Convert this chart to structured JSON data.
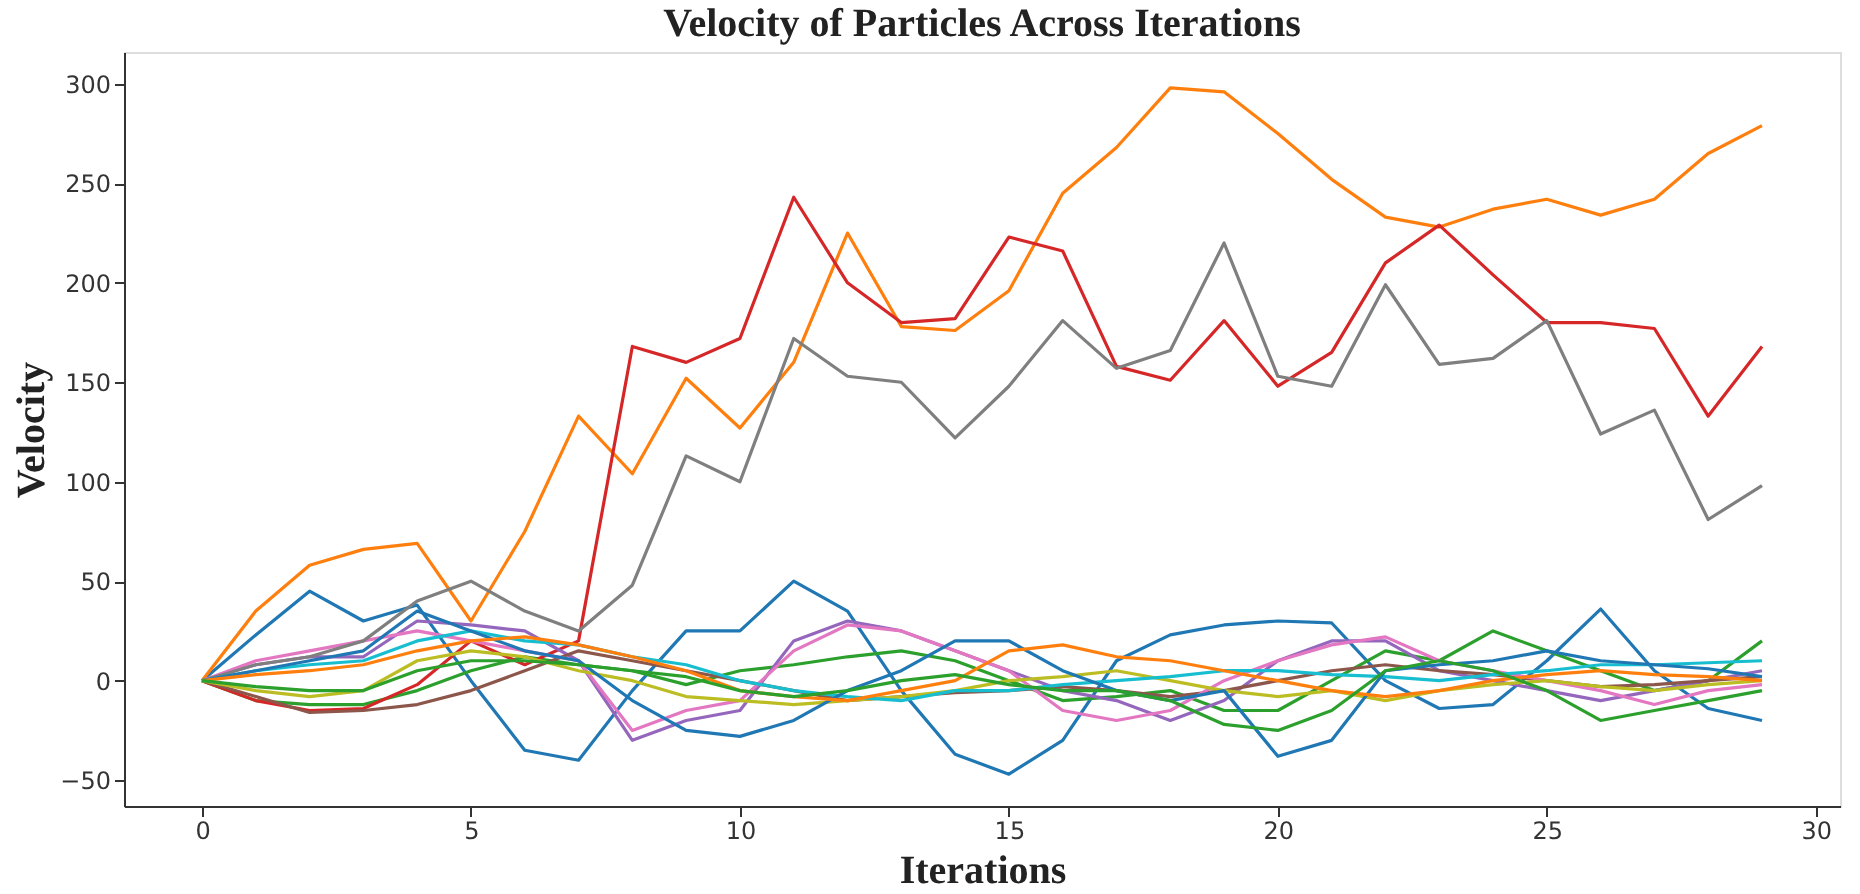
{
  "chart_data": {
    "type": "line",
    "title": "Velocity of Particles Across Iterations",
    "xlabel": "Iterations",
    "ylabel": "Velocity",
    "x": [
      0,
      1,
      2,
      3,
      4,
      5,
      6,
      7,
      8,
      9,
      10,
      11,
      12,
      13,
      14,
      15,
      16,
      17,
      18,
      19,
      20,
      21,
      22,
      23,
      24,
      25,
      26,
      27,
      28,
      29
    ],
    "xlim": [
      -1.45,
      30.45
    ],
    "xticks": [
      0,
      5,
      10,
      15,
      20,
      25,
      30
    ],
    "ylim": [
      -63,
      316
    ],
    "yticks": [
      -50,
      0,
      50,
      100,
      150,
      200,
      250,
      300
    ],
    "grid": false,
    "legend": false,
    "marker": "none",
    "line_style": "solid",
    "series": [
      {
        "color": "#1f77b4",
        "values": [
          0,
          23,
          45,
          30,
          38,
          0,
          -35,
          -40,
          -5,
          25,
          25,
          50,
          35,
          -5,
          -37,
          -47,
          -30,
          10,
          23,
          28,
          30,
          29,
          0,
          -14,
          -12,
          10,
          36,
          5,
          -14,
          -20
        ]
      },
      {
        "color": "#ff7f0e",
        "values": [
          0,
          35,
          58,
          66,
          69,
          30,
          75,
          133,
          104,
          152,
          127,
          160,
          225,
          178,
          176,
          196,
          245,
          268,
          298,
          296,
          275,
          252,
          233,
          228,
          237,
          242,
          234,
          242,
          265,
          279
        ]
      },
      {
        "color": "#2ca02c",
        "values": [
          0,
          -10,
          -12,
          -12,
          -5,
          5,
          12,
          8,
          5,
          -2,
          5,
          8,
          12,
          15,
          10,
          0,
          -10,
          -8,
          -5,
          -15,
          -15,
          0,
          15,
          10,
          25,
          15,
          5,
          -5,
          0,
          20
        ]
      },
      {
        "color": "#d62728",
        "values": [
          0,
          -10,
          -15,
          -14,
          -2,
          20,
          8,
          20,
          168,
          160,
          172,
          243,
          200,
          180,
          182,
          223,
          216,
          158,
          151,
          181,
          148,
          165,
          210,
          229,
          204,
          180,
          180,
          177,
          133,
          168
        ]
      },
      {
        "color": "#9467bd",
        "values": [
          0,
          8,
          12,
          12,
          30,
          28,
          25,
          10,
          -30,
          -20,
          -15,
          20,
          30,
          25,
          15,
          5,
          -5,
          -10,
          -20,
          -10,
          10,
          20,
          20,
          5,
          0,
          -5,
          -10,
          -5,
          0,
          5
        ]
      },
      {
        "color": "#8c564b",
        "values": [
          0,
          -8,
          -16,
          -15,
          -12,
          -5,
          5,
          15,
          10,
          5,
          0,
          -5,
          -10,
          -8,
          -6,
          -5,
          -3,
          -5,
          -8,
          -5,
          0,
          5,
          8,
          5,
          3,
          0,
          -3,
          -2,
          0,
          2
        ]
      },
      {
        "color": "#e377c2",
        "values": [
          0,
          10,
          15,
          20,
          25,
          20,
          15,
          10,
          -25,
          -15,
          -10,
          15,
          28,
          25,
          15,
          5,
          -15,
          -20,
          -15,
          0,
          10,
          18,
          22,
          10,
          5,
          0,
          -5,
          -12,
          -5,
          -2
        ]
      },
      {
        "color": "#7f7f7f",
        "values": [
          0,
          8,
          12,
          20,
          40,
          50,
          35,
          25,
          48,
          113,
          100,
          172,
          153,
          150,
          122,
          148,
          181,
          157,
          166,
          220,
          153,
          148,
          199,
          159,
          162,
          181,
          124,
          136,
          81,
          98
        ]
      },
      {
        "color": "#bcbd22",
        "values": [
          0,
          -5,
          -8,
          -5,
          10,
          15,
          12,
          5,
          0,
          -8,
          -10,
          -12,
          -10,
          -8,
          -5,
          0,
          2,
          5,
          0,
          -5,
          -8,
          -5,
          -10,
          -5,
          -2,
          0,
          -3,
          -5,
          -2,
          0
        ]
      },
      {
        "color": "#17becf",
        "values": [
          0,
          5,
          8,
          10,
          20,
          25,
          20,
          18,
          12,
          8,
          0,
          -5,
          -8,
          -10,
          -5,
          -5,
          -2,
          0,
          2,
          5,
          5,
          3,
          2,
          0,
          3,
          5,
          8,
          8,
          9,
          10
        ]
      },
      {
        "color": "#1f77b4",
        "values": [
          0,
          5,
          10,
          15,
          35,
          25,
          15,
          10,
          -10,
          -25,
          -28,
          -20,
          -5,
          5,
          20,
          20,
          5,
          -5,
          -10,
          -5,
          -38,
          -30,
          5,
          8,
          10,
          15,
          10,
          8,
          6,
          2
        ]
      },
      {
        "color": "#ff7f0e",
        "values": [
          0,
          3,
          5,
          8,
          15,
          20,
          22,
          18,
          12,
          5,
          -5,
          -8,
          -10,
          -5,
          0,
          15,
          18,
          12,
          10,
          5,
          0,
          -5,
          -8,
          -5,
          0,
          3,
          5,
          3,
          2,
          0
        ]
      },
      {
        "color": "#2ca02c",
        "values": [
          0,
          -3,
          -5,
          -5,
          5,
          10,
          10,
          8,
          5,
          2,
          -5,
          -8,
          -5,
          0,
          3,
          -2,
          -5,
          -5,
          -10,
          -22,
          -25,
          -15,
          5,
          10,
          5,
          -5,
          -20,
          -15,
          -10,
          -5
        ]
      }
    ]
  }
}
